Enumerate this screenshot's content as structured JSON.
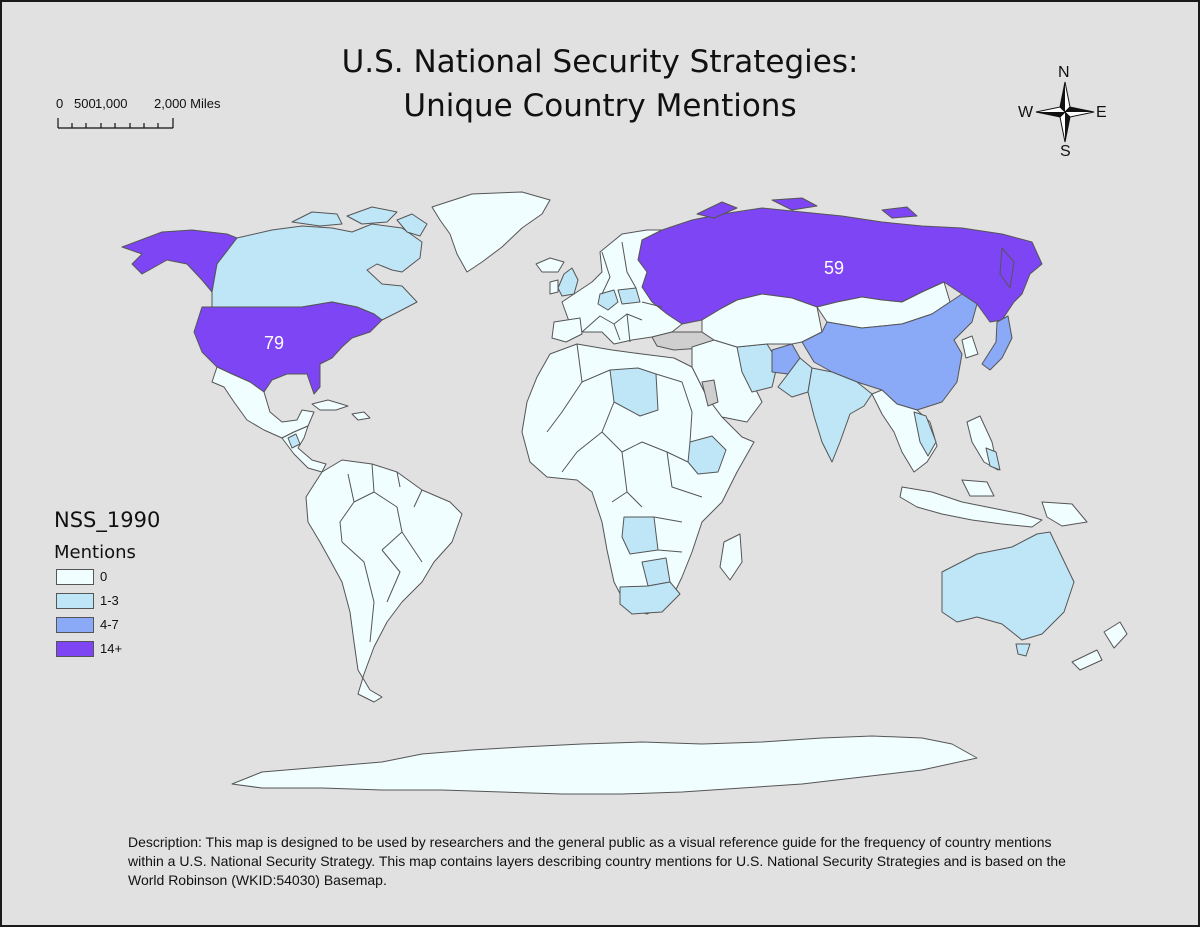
{
  "title_lines": [
    "U.S. National Security Strategies:",
    "Unique Country Mentions"
  ],
  "scale_bar": {
    "labels": [
      "0",
      "500",
      "1,000",
      "2,000 Miles"
    ]
  },
  "compass": {
    "n": "N",
    "s": "S",
    "e": "E",
    "w": "W"
  },
  "map_labels": {
    "usa": "79",
    "russia": "59"
  },
  "legend": {
    "title": "NSS_1990",
    "subtitle": "Mentions",
    "classes": [
      {
        "label": "0",
        "color": "#f1feff"
      },
      {
        "label": "1-3",
        "color": "#bfe6f7"
      },
      {
        "label": "4-7",
        "color": "#8aa9f7"
      },
      {
        "label": "14+",
        "color": "#7e45f5"
      }
    ]
  },
  "colors": {
    "background": "#e1e1e1",
    "outline": "#555555",
    "neutral": "#cfcfcf"
  },
  "description": "Description:  This map is designed to be used by researchers and the general public as a visual reference guide for the frequency of country mentions within a U.S. National Security Strategy.  This map contains layers describing country mentions for U.S. National Security Strategies and is based on the World Robinson (WKID:54030) Basemap."
}
